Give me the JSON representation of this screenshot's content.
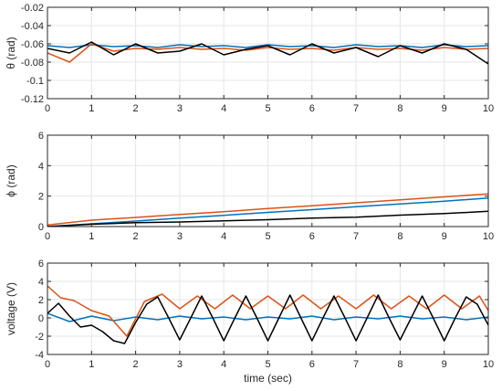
{
  "chart_data": [
    {
      "type": "line",
      "ylabel": "θ (rad)",
      "xlabel": "",
      "xlim": [
        0,
        10
      ],
      "ylim": [
        -0.12,
        -0.02
      ],
      "xticks": [
        0,
        1,
        2,
        3,
        4,
        5,
        6,
        7,
        8,
        9,
        10
      ],
      "yticks": [
        -0.12,
        -0.1,
        -0.08,
        -0.06,
        -0.04,
        -0.02
      ],
      "ytick_labels": [
        "-0.12",
        "-0.1",
        "-0.08",
        "-0.06",
        "-0.04",
        "-0.02"
      ],
      "grid": true,
      "series": [
        {
          "color": "#0072BD",
          "x": [
            0,
            0.5,
            1,
            1.5,
            2,
            2.5,
            3,
            3.5,
            4,
            4.5,
            5,
            5.5,
            6,
            6.5,
            7,
            7.5,
            8,
            8.5,
            9,
            9.5,
            10
          ],
          "y": [
            -0.062,
            -0.064,
            -0.061,
            -0.063,
            -0.062,
            -0.064,
            -0.061,
            -0.063,
            -0.062,
            -0.064,
            -0.061,
            -0.063,
            -0.062,
            -0.064,
            -0.061,
            -0.063,
            -0.062,
            -0.064,
            -0.061,
            -0.063,
            -0.062
          ]
        },
        {
          "color": "#D95319",
          "x": [
            0,
            0.5,
            1,
            1.5,
            2,
            2.5,
            3,
            3.5,
            4,
            4.5,
            5,
            5.5,
            6,
            6.5,
            7,
            7.5,
            8,
            8.5,
            9,
            9.5,
            10
          ],
          "y": [
            -0.07,
            -0.08,
            -0.06,
            -0.068,
            -0.065,
            -0.066,
            -0.064,
            -0.066,
            -0.065,
            -0.067,
            -0.064,
            -0.066,
            -0.065,
            -0.067,
            -0.064,
            -0.066,
            -0.065,
            -0.067,
            -0.064,
            -0.066,
            -0.065
          ]
        },
        {
          "color": "#000000",
          "x": [
            0,
            0.5,
            1,
            1.5,
            2,
            2.5,
            3,
            3.5,
            4,
            4.5,
            5,
            5.5,
            6,
            6.5,
            7,
            7.5,
            8,
            8.5,
            9,
            9.5,
            10
          ],
          "y": [
            -0.065,
            -0.07,
            -0.058,
            -0.072,
            -0.06,
            -0.07,
            -0.068,
            -0.06,
            -0.072,
            -0.066,
            -0.062,
            -0.072,
            -0.06,
            -0.07,
            -0.064,
            -0.074,
            -0.062,
            -0.07,
            -0.06,
            -0.066,
            -0.082
          ]
        }
      ]
    },
    {
      "type": "line",
      "ylabel": "ϕ (rad)",
      "xlabel": "",
      "xlim": [
        0,
        10
      ],
      "ylim": [
        0,
        6
      ],
      "xticks": [
        0,
        1,
        2,
        3,
        4,
        5,
        6,
        7,
        8,
        9,
        10
      ],
      "yticks": [
        0,
        2,
        4,
        6
      ],
      "ytick_labels": [
        "0",
        "2",
        "4",
        "6"
      ],
      "grid": true,
      "series": [
        {
          "color": "#0072BD",
          "x": [
            0,
            1,
            2,
            3,
            4,
            5,
            6,
            7,
            8,
            9,
            10
          ],
          "y": [
            0,
            0.18,
            0.36,
            0.55,
            0.74,
            0.93,
            1.11,
            1.3,
            1.48,
            1.67,
            1.87
          ]
        },
        {
          "color": "#D95319",
          "x": [
            0,
            1,
            2,
            3,
            4,
            5,
            6,
            7,
            8,
            9,
            10
          ],
          "y": [
            0.1,
            0.42,
            0.6,
            0.8,
            0.98,
            1.18,
            1.37,
            1.56,
            1.75,
            1.95,
            2.15
          ]
        },
        {
          "color": "#000000",
          "x": [
            0,
            1,
            2,
            3,
            4,
            5,
            6,
            7,
            8,
            9,
            10
          ],
          "y": [
            0,
            0.15,
            0.25,
            0.3,
            0.38,
            0.45,
            0.55,
            0.62,
            0.75,
            0.85,
            1.0
          ]
        }
      ]
    },
    {
      "type": "line",
      "ylabel": "voltage (V)",
      "xlabel": "time (sec)",
      "xlim": [
        0,
        10
      ],
      "ylim": [
        -4,
        6
      ],
      "xticks": [
        0,
        1,
        2,
        3,
        4,
        5,
        6,
        7,
        8,
        9,
        10
      ],
      "yticks": [
        -4,
        -2,
        0,
        2,
        4,
        6
      ],
      "ytick_labels": [
        "-4",
        "-2",
        "0",
        "2",
        "4",
        "6"
      ],
      "grid": true,
      "series": [
        {
          "color": "#0072BD",
          "x": [
            0,
            0.5,
            1,
            1.5,
            2,
            2.5,
            3,
            3.5,
            4,
            4.5,
            5,
            5.5,
            6,
            6.5,
            7,
            7.5,
            8,
            8.5,
            9,
            9.5,
            10
          ],
          "y": [
            0.5,
            -0.4,
            0.2,
            -0.3,
            0.1,
            -0.2,
            0.2,
            -0.1,
            0.1,
            -0.2,
            0.1,
            -0.1,
            0.2,
            -0.2,
            0.1,
            -0.1,
            0.2,
            -0.1,
            0.1,
            -0.2,
            0.1
          ]
        },
        {
          "color": "#D95319",
          "x": [
            0,
            0.3,
            0.6,
            1,
            1.4,
            1.8,
            2.2,
            2.6,
            3,
            3.4,
            3.8,
            4.2,
            4.6,
            5,
            5.4,
            5.8,
            6.2,
            6.6,
            7,
            7.4,
            7.8,
            8.2,
            8.6,
            9,
            9.4,
            9.8,
            10
          ],
          "y": [
            3.5,
            2.2,
            1.9,
            0.8,
            0.2,
            -2.0,
            1.8,
            2.6,
            1.0,
            2.4,
            1.0,
            2.5,
            1.0,
            2.4,
            1.0,
            2.5,
            1.0,
            2.4,
            1.0,
            2.5,
            1.0,
            2.4,
            1.0,
            2.5,
            1.0,
            2.4,
            0.8
          ]
        },
        {
          "color": "#000000",
          "x": [
            0,
            0.25,
            0.5,
            0.75,
            1,
            1.25,
            1.5,
            1.75,
            2,
            2.25,
            2.5,
            2.75,
            3,
            3.25,
            3.5,
            3.75,
            4,
            4.25,
            4.5,
            4.75,
            5,
            5.25,
            5.5,
            5.75,
            6,
            6.25,
            6.5,
            6.75,
            7,
            7.25,
            7.5,
            7.75,
            8,
            8.25,
            8.5,
            8.75,
            9,
            9.25,
            9.5,
            9.75,
            10
          ],
          "y": [
            0.5,
            1.6,
            0.2,
            -1.0,
            -0.8,
            -1.5,
            -2.5,
            -2.8,
            -0.5,
            1.5,
            2.3,
            0,
            -2.4,
            0,
            2.4,
            0,
            -2.5,
            0,
            2.4,
            0,
            -2.5,
            0,
            2.5,
            0,
            -2.5,
            0,
            2.4,
            0,
            -2.5,
            0,
            2.5,
            0,
            -2.4,
            0,
            2.4,
            0,
            -2.5,
            0,
            2.3,
            1.5,
            -0.8
          ]
        }
      ]
    }
  ]
}
